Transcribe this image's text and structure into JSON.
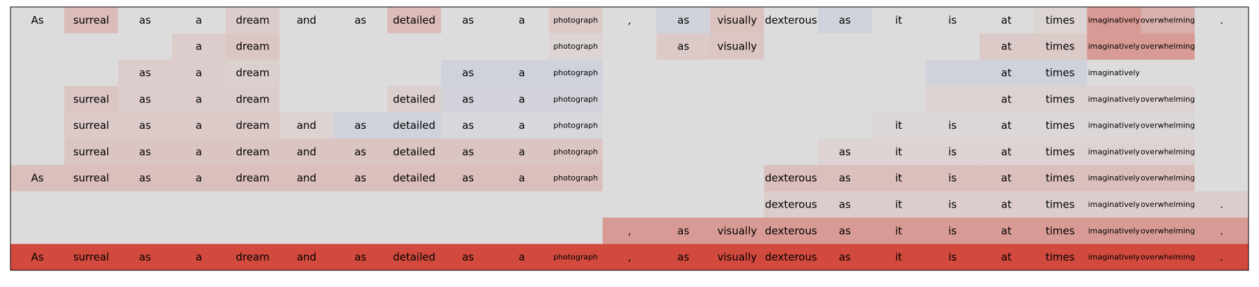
{
  "chart_data": {
    "type": "heatmap",
    "title": "",
    "xlabel": "",
    "ylabel": "",
    "grid": false,
    "legend": "none",
    "tokens": [
      "As",
      "surreal",
      "as",
      "a",
      "dream",
      "and",
      "as",
      "detailed",
      "as",
      "a",
      "photograph",
      ",",
      "as",
      "visually",
      "dexterous",
      "as",
      "it",
      "is",
      "at",
      "times",
      "imaginatively",
      "overwhelming",
      "."
    ],
    "rows": [
      {
        "mask": "11111111111111111111111",
        "values": [
          0.0,
          0.22,
          0.0,
          0.0,
          0.1,
          0.0,
          0.0,
          0.22,
          0.0,
          0.0,
          0.12,
          0.0,
          -0.08,
          0.18,
          0.0,
          -0.08,
          0.0,
          0.0,
          0.0,
          0.05,
          0.45,
          0.3,
          0.0
        ]
      },
      {
        "mask": "00011000001011000011110",
        "values": [
          0.0,
          0.0,
          0.0,
          0.1,
          0.15,
          0.0,
          0.0,
          0.0,
          0.0,
          0.0,
          0.05,
          0.0,
          0.12,
          0.15,
          0.0,
          0.0,
          0.0,
          0.0,
          0.12,
          0.12,
          0.45,
          0.45,
          0.0
        ]
      },
      {
        "mask": "00111000111000000011100",
        "values": [
          0.0,
          0.0,
          0.1,
          0.1,
          0.08,
          0.0,
          0.0,
          0.0,
          -0.08,
          -0.08,
          -0.08,
          0.0,
          0.0,
          0.0,
          0.0,
          0.0,
          0.0,
          -0.08,
          -0.08,
          -0.08,
          0.0,
          0.0,
          0.0
        ]
      },
      {
        "mask": "01111001111000000011110",
        "values": [
          0.0,
          0.15,
          0.1,
          0.1,
          0.1,
          0.0,
          0.0,
          0.08,
          -0.06,
          -0.06,
          -0.06,
          0.0,
          0.0,
          0.0,
          0.0,
          0.0,
          0.0,
          0.06,
          0.06,
          0.06,
          0.06,
          0.06,
          0.0
        ]
      },
      {
        "mask": "01111111111000001111110",
        "values": [
          0.0,
          0.12,
          0.12,
          0.12,
          0.12,
          0.06,
          -0.08,
          -0.08,
          -0.04,
          -0.04,
          -0.04,
          0.0,
          0.0,
          0.0,
          0.0,
          0.0,
          0.04,
          0.04,
          0.04,
          0.04,
          0.04,
          0.04,
          0.0
        ]
      },
      {
        "mask": "01111111111000011111110",
        "values": [
          0.0,
          0.16,
          0.16,
          0.16,
          0.16,
          0.16,
          0.16,
          0.16,
          0.16,
          0.16,
          0.16,
          0.0,
          0.0,
          0.0,
          0.0,
          0.06,
          0.06,
          0.06,
          0.06,
          0.06,
          0.06,
          0.06,
          0.0
        ]
      },
      {
        "mask": "11111111111000111111110",
        "values": [
          0.2,
          0.2,
          0.2,
          0.2,
          0.2,
          0.2,
          0.2,
          0.2,
          0.2,
          0.2,
          0.2,
          0.0,
          0.0,
          0.0,
          0.2,
          0.2,
          0.2,
          0.2,
          0.2,
          0.2,
          0.2,
          0.2,
          0.0
        ]
      },
      {
        "mask": "00000000000000111111111",
        "values": [
          0.0,
          0.0,
          0.0,
          0.0,
          0.0,
          0.0,
          0.0,
          0.0,
          0.0,
          0.0,
          0.0,
          0.0,
          0.0,
          0.0,
          0.1,
          0.1,
          0.1,
          0.1,
          0.1,
          0.1,
          0.1,
          0.1,
          0.1
        ]
      },
      {
        "mask": "00000000000111111111111",
        "values": [
          0.0,
          0.0,
          0.0,
          0.0,
          0.0,
          0.0,
          0.0,
          0.0,
          0.0,
          0.0,
          0.0,
          0.45,
          0.45,
          0.45,
          0.45,
          0.45,
          0.45,
          0.45,
          0.45,
          0.45,
          0.45,
          0.45,
          0.45
        ]
      },
      {
        "mask": "11111111111111111111111",
        "values": [
          1.0,
          1.0,
          1.0,
          1.0,
          1.0,
          1.0,
          1.0,
          1.0,
          1.0,
          1.0,
          1.0,
          1.0,
          1.0,
          1.0,
          1.0,
          1.0,
          1.0,
          1.0,
          1.0,
          1.0,
          1.0,
          1.0,
          1.0
        ]
      }
    ],
    "colors": {
      "neutral": "#dddcdc",
      "positive_max": "#d24a3d",
      "negative_max": "#3b5bd0",
      "border": "#000000",
      "text": "#000000"
    }
  }
}
